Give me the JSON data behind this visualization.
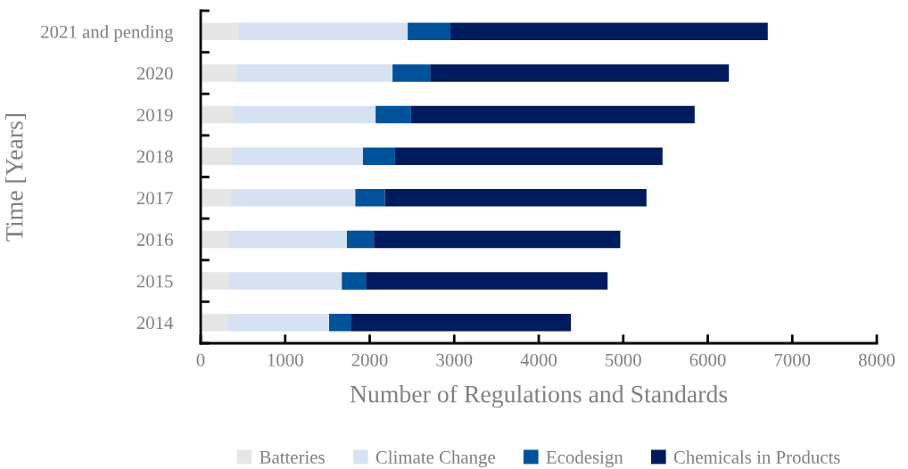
{
  "chart_data": {
    "type": "bar",
    "orientation": "horizontal",
    "stacked": true,
    "xlabel": "Number of Regulations and Standards",
    "ylabel": "Time [Years]",
    "categories": [
      "2021 and pending",
      "2020",
      "2019",
      "2018",
      "2017",
      "2016",
      "2015",
      "2014"
    ],
    "series": [
      {
        "name": "Batteries",
        "color": "#e7e6e6",
        "values": [
          440,
          420,
          380,
          360,
          350,
          330,
          330,
          320
        ]
      },
      {
        "name": "Climate Change",
        "color": "#d6e2f2",
        "values": [
          2010,
          1850,
          1690,
          1560,
          1480,
          1400,
          1340,
          1200
        ]
      },
      {
        "name": "Ecodesign",
        "color": "#00529b",
        "values": [
          505,
          445,
          420,
          380,
          350,
          320,
          285,
          255
        ]
      },
      {
        "name": "Chemicals in Products",
        "color": "#001a5e",
        "values": [
          3755,
          3535,
          3355,
          3165,
          3095,
          2915,
          2860,
          2605
        ]
      }
    ],
    "xlim": [
      0,
      8000
    ],
    "xticks": [
      0,
      1000,
      2000,
      3000,
      4000,
      5000,
      6000,
      7000,
      8000
    ],
    "grid": false,
    "legend": "bottom"
  }
}
